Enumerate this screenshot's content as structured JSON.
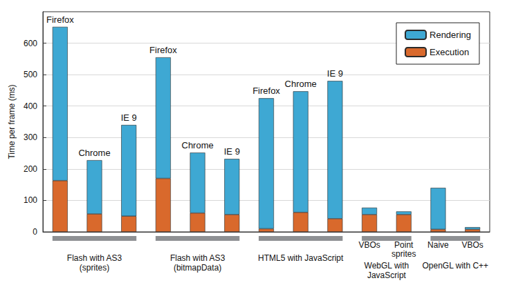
{
  "chart_data": {
    "type": "bar",
    "stacked": true,
    "categories": [
      "Firefox",
      "Chrome",
      "IE 9",
      "Firefox",
      "Chrome",
      "IE 9",
      "Firefox",
      "Chrome",
      "IE 9",
      "VBOs",
      "Point\nsprites",
      "Naive",
      "VBOs"
    ],
    "groups": [
      "Flash with AS3\n(sprites)",
      "Flash with AS3\n(sprites)",
      "Flash with AS3\n(sprites)",
      "Flash with AS3\n(bitmapData)",
      "Flash with AS3\n(bitmapData)",
      "Flash with AS3\n(bitmapData)",
      "HTML5 with JavaScript",
      "HTML5 with JavaScript",
      "HTML5 with JavaScript",
      "WebGL with\nJavaScript",
      "WebGL with\nJavaScript",
      "OpenGL with C++",
      "OpenGL with C++"
    ],
    "series": [
      {
        "name": "Rendering",
        "color": "#3ea8d3",
        "values": [
          489,
          171,
          290,
          385,
          192,
          177,
          415,
          385,
          438,
          22,
          10,
          132,
          7
        ]
      },
      {
        "name": "Execution",
        "color": "#d9692c",
        "values": [
          163,
          57,
          50,
          170,
          60,
          55,
          10,
          62,
          42,
          55,
          55,
          8,
          8
        ]
      }
    ],
    "ylabel": "Time per frame (ms)",
    "ylim": [
      0,
      700
    ],
    "yticks": [
      0,
      100,
      200,
      300,
      400,
      500,
      600
    ],
    "grid": true,
    "legend": "upper right"
  }
}
